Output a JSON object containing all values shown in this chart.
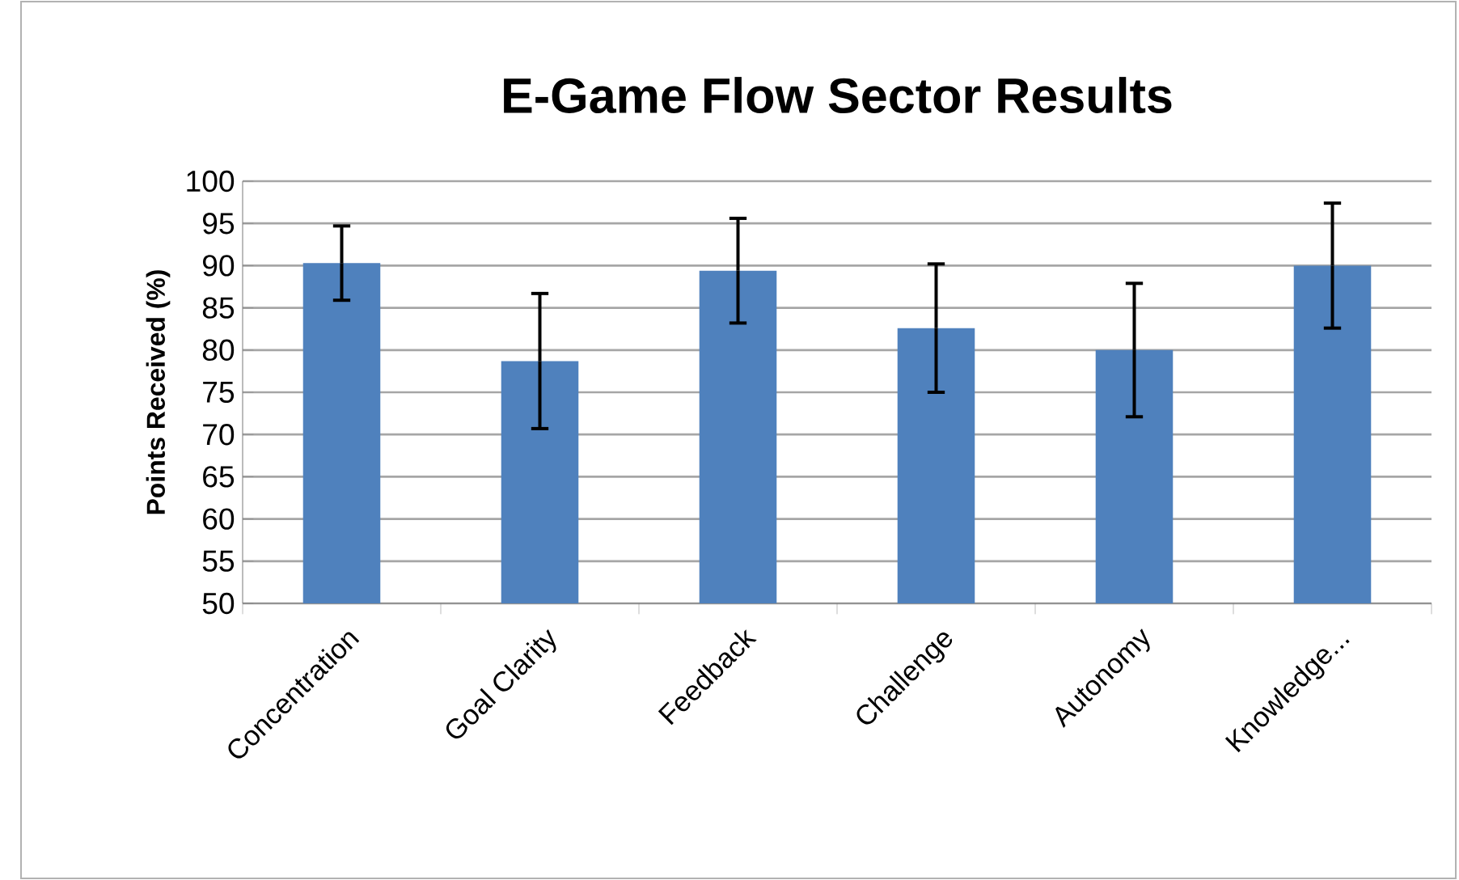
{
  "chart_data": {
    "type": "bar",
    "title": "E-Game Flow Sector Results",
    "ylabel": "Points Received (%)",
    "categories": [
      "Concentration",
      "Goal Clarity",
      "Feedback",
      "Challenge",
      "Autonomy",
      "Knowledge..."
    ],
    "values": [
      90.3,
      78.7,
      89.4,
      82.6,
      80.0,
      90.0
    ],
    "errors": [
      4.4,
      8.0,
      6.2,
      7.6,
      7.9,
      7.4
    ],
    "color": "#4f81bd",
    "ylim": [
      50,
      100
    ],
    "yticks": [
      50,
      55,
      60,
      65,
      70,
      75,
      80,
      85,
      90,
      95,
      100
    ],
    "grid": "y"
  }
}
